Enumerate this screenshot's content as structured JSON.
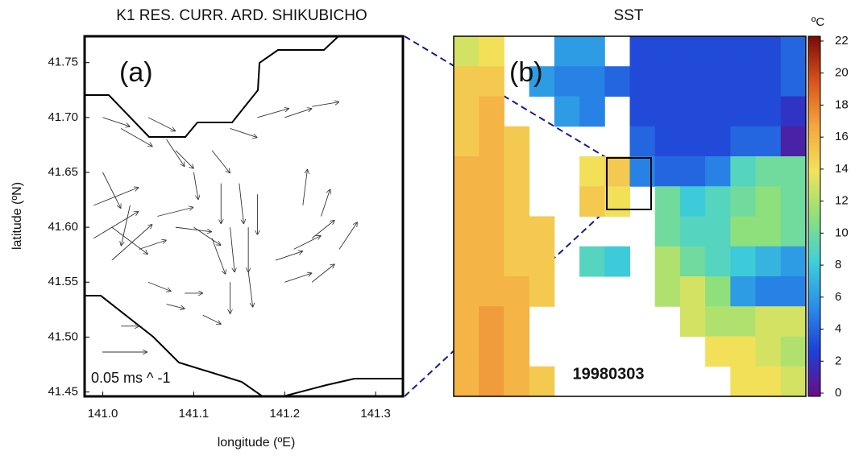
{
  "chart_data": [
    {
      "type": "quiver",
      "title": "K1 RES. CURR. ARD. SHIKUBICHO",
      "panel_label": "(a)",
      "x_label": "longitude (ºE)",
      "y_label": "latitude (ºN)",
      "xlim": [
        140.98,
        141.33
      ],
      "ylim": [
        41.446,
        41.774
      ],
      "xticks": [
        {
          "value": 141.0,
          "label": "141.0"
        },
        141.1,
        141.2,
        141.3
      ],
      "yticks": [
        41.45,
        {
          "value": 41.5,
          "label": "41.50"
        },
        41.55,
        {
          "value": 41.6,
          "label": "41.60"
        },
        41.65,
        {
          "value": 41.7,
          "label": "41.70"
        },
        41.75
      ],
      "scale_arrow": {
        "value": 0.05,
        "label": "0.05 ms ^ -1"
      },
      "color": "#333333",
      "x": [
        141.0,
        141.02,
        141.05,
        141.07,
        141.0,
        140.99,
        140.99,
        141.01,
        141.01,
        141.03,
        141.04,
        141.06,
        141.08,
        141.1,
        141.12,
        141.14,
        141.16,
        141.13,
        141.15,
        141.17,
        141.12,
        141.14,
        141.17,
        141.2,
        141.23,
        141.08,
        141.1,
        141.05,
        141.07,
        141.09,
        141.11,
        141.14,
        141.16,
        141.19,
        141.21,
        141.23,
        141.2,
        141.23,
        141.22,
        141.24,
        141.26,
        141.02
      ],
      "y": [
        41.7,
        41.69,
        41.7,
        41.68,
        41.65,
        41.62,
        41.59,
        41.6,
        41.57,
        41.62,
        41.58,
        41.61,
        41.6,
        41.6,
        41.59,
        41.6,
        41.6,
        41.64,
        41.64,
        41.63,
        41.67,
        41.69,
        41.7,
        41.7,
        41.71,
        41.67,
        41.65,
        41.55,
        41.53,
        41.54,
        41.52,
        41.55,
        41.56,
        41.57,
        41.58,
        41.59,
        41.55,
        41.55,
        41.62,
        41.61,
        41.58,
        41.51
      ],
      "u": [
        0.03,
        0.035,
        0.03,
        0.02,
        0.02,
        0.05,
        0.05,
        0.04,
        0.045,
        -0.01,
        0.03,
        0.04,
        0.04,
        0.03,
        0.015,
        0.005,
        0.0,
        0.0,
        0.005,
        0.0,
        0.02,
        0.03,
        0.035,
        0.03,
        0.03,
        0.02,
        0.005,
        0.025,
        0.02,
        0.02,
        0.02,
        0.0,
        0.005,
        0.03,
        0.03,
        0.025,
        0.03,
        0.025,
        0.005,
        0.01,
        0.02,
        0.02
      ],
      "v": [
        -0.01,
        -0.02,
        -0.015,
        -0.03,
        -0.04,
        0.02,
        0.03,
        -0.03,
        0.04,
        -0.045,
        0.01,
        0.01,
        -0.005,
        -0.02,
        -0.04,
        -0.05,
        -0.05,
        -0.045,
        -0.045,
        -0.045,
        -0.025,
        -0.01,
        0.01,
        0.01,
        0.005,
        -0.02,
        -0.03,
        -0.01,
        -0.005,
        0.0,
        -0.01,
        -0.035,
        -0.04,
        0.01,
        0.015,
        0.02,
        0.01,
        0.02,
        0.04,
        0.03,
        0.03,
        0.0
      ]
    },
    {
      "type": "heatmap",
      "title": "SST",
      "panel_label": "(b)",
      "annotation": "19980303",
      "colorbar_label": "ºC",
      "clim": [
        -0.2,
        22.3
      ],
      "colorbar_ticks": [
        0,
        2,
        4,
        6,
        8,
        10,
        12,
        14,
        16,
        18,
        20,
        22
      ],
      "colormap": [
        "#6a0d83",
        "#1f3fd6",
        "#2a8ee8",
        "#3fd0d8",
        "#8fe07a",
        "#f2e35a",
        "#f4a640",
        "#d8531c",
        "#7a0a05"
      ],
      "z": [
        [
          13,
          14,
          null,
          null,
          6,
          6,
          null,
          3,
          3,
          3,
          3,
          3,
          3,
          4
        ],
        [
          15,
          15,
          null,
          6,
          5,
          5,
          4,
          3,
          3,
          3,
          3,
          3,
          3,
          4
        ],
        [
          15,
          16,
          null,
          null,
          6,
          5,
          null,
          3,
          3,
          3,
          3,
          3,
          3,
          2
        ],
        [
          15,
          16,
          15,
          null,
          null,
          null,
          null,
          4,
          3,
          3,
          3,
          4,
          4,
          1
        ],
        [
          16,
          16,
          15,
          null,
          null,
          14,
          15,
          5,
          4,
          4,
          5,
          9,
          10,
          10
        ],
        [
          16,
          16,
          15,
          null,
          null,
          15,
          14,
          null,
          10,
          8,
          9,
          10,
          11,
          10
        ],
        [
          16,
          16,
          15,
          15,
          null,
          null,
          null,
          null,
          10,
          9,
          9,
          11,
          11,
          10
        ],
        [
          16,
          16,
          15,
          15,
          null,
          9,
          8,
          null,
          12,
          10,
          9,
          8,
          7,
          6
        ],
        [
          16,
          16,
          16,
          15,
          null,
          null,
          null,
          null,
          12,
          13,
          11,
          6,
          5,
          5
        ],
        [
          16,
          17,
          16,
          null,
          null,
          null,
          null,
          null,
          null,
          13,
          12,
          12,
          13,
          13
        ],
        [
          16,
          17,
          16,
          null,
          null,
          null,
          null,
          null,
          null,
          null,
          14,
          14,
          13,
          12
        ],
        [
          16,
          17,
          16,
          15,
          null,
          null,
          null,
          null,
          null,
          null,
          null,
          14,
          14,
          13
        ]
      ]
    }
  ]
}
